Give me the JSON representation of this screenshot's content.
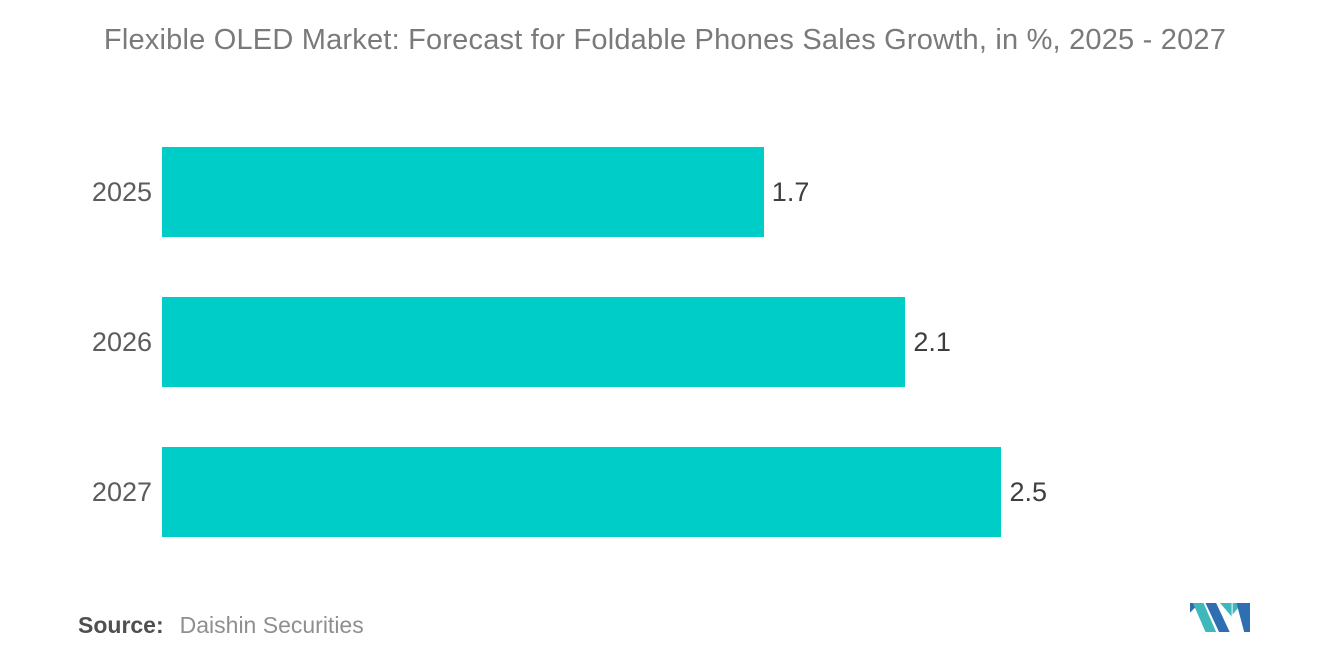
{
  "title": "Flexible OLED Market: Forecast for Foldable Phones Sales Growth, in %, 2025 - 2027",
  "chart_data": {
    "type": "bar",
    "orientation": "horizontal",
    "title": "Flexible OLED Market: Forecast for Foldable Phones Sales Growth, in %, 2025 - 2027",
    "categories": [
      "2025",
      "2026",
      "2027"
    ],
    "values": [
      1.7,
      2.1,
      2.5
    ],
    "xlabel": "",
    "ylabel": "",
    "xlim": [
      0,
      2.5
    ],
    "grid": false,
    "legend": "none",
    "bar_color": "#00CCC8",
    "data_labels": [
      "1.7",
      "2.1",
      "2.5"
    ]
  },
  "source": {
    "label": "Source:",
    "text": "Daishin Securities"
  },
  "colors": {
    "background": "#ffffff",
    "title_text": "#7a7a7a",
    "category_text": "#5c5c5c",
    "value_text": "#3e3e3e",
    "source_label": "#4f4f4f",
    "source_text": "#8f8f8f"
  },
  "logo": {
    "name": "mordor-intelligence-logo",
    "teal": "#3fb8bc",
    "blue": "#2e6fb2"
  }
}
